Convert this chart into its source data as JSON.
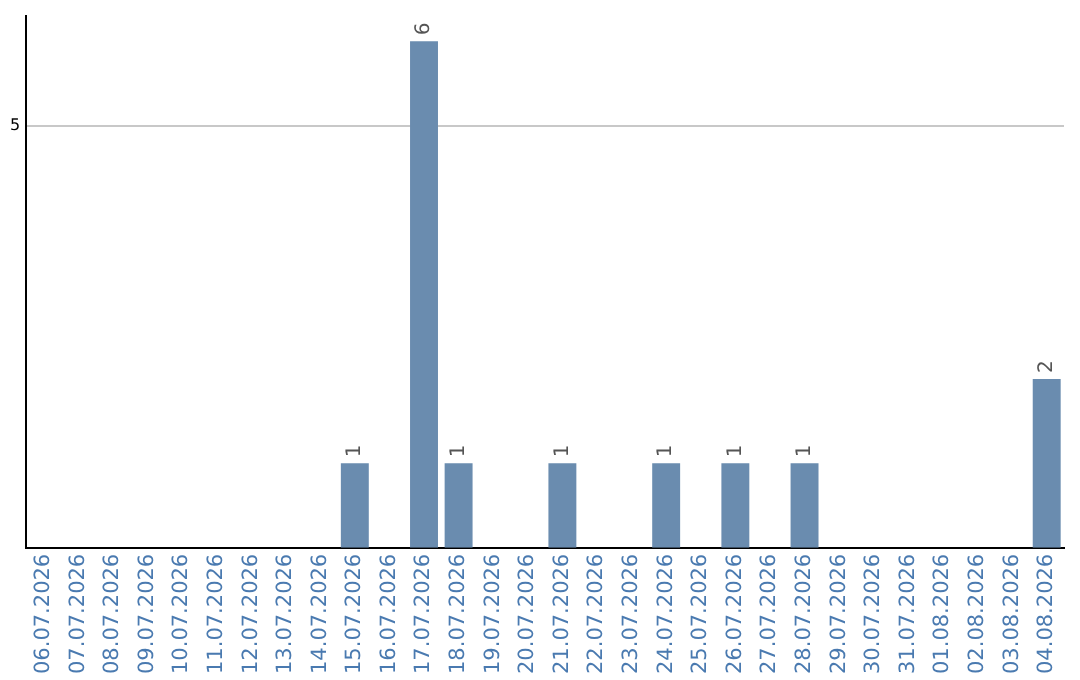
{
  "chart_data": {
    "type": "bar",
    "categories": [
      "06.07.2026",
      "07.07.2026",
      "08.07.2026",
      "09.07.2026",
      "10.07.2026",
      "11.07.2026",
      "12.07.2026",
      "13.07.2026",
      "14.07.2026",
      "15.07.2026",
      "16.07.2026",
      "17.07.2026",
      "18.07.2026",
      "19.07.2026",
      "20.07.2026",
      "21.07.2026",
      "22.07.2026",
      "23.07.2026",
      "24.07.2026",
      "25.07.2026",
      "26.07.2026",
      "27.07.2026",
      "28.07.2026",
      "29.07.2026",
      "30.07.2026",
      "31.07.2026",
      "01.08.2026",
      "02.08.2026",
      "03.08.2026",
      "04.08.2026"
    ],
    "values": [
      0,
      0,
      0,
      0,
      0,
      0,
      0,
      0,
      0,
      1,
      0,
      6,
      1,
      0,
      0,
      1,
      0,
      0,
      1,
      0,
      1,
      0,
      1,
      0,
      0,
      0,
      0,
      0,
      0,
      2
    ],
    "value_labels": [
      null,
      null,
      null,
      null,
      null,
      null,
      null,
      null,
      null,
      "1",
      null,
      "6",
      "1",
      null,
      null,
      "1",
      null,
      null,
      "1",
      null,
      "1",
      null,
      "1",
      null,
      null,
      null,
      null,
      null,
      null,
      "2"
    ],
    "color": "#6a8caf",
    "ylim": [
      0,
      6.3
    ],
    "yticks": [
      5
    ],
    "grid": "y",
    "legend": false
  }
}
